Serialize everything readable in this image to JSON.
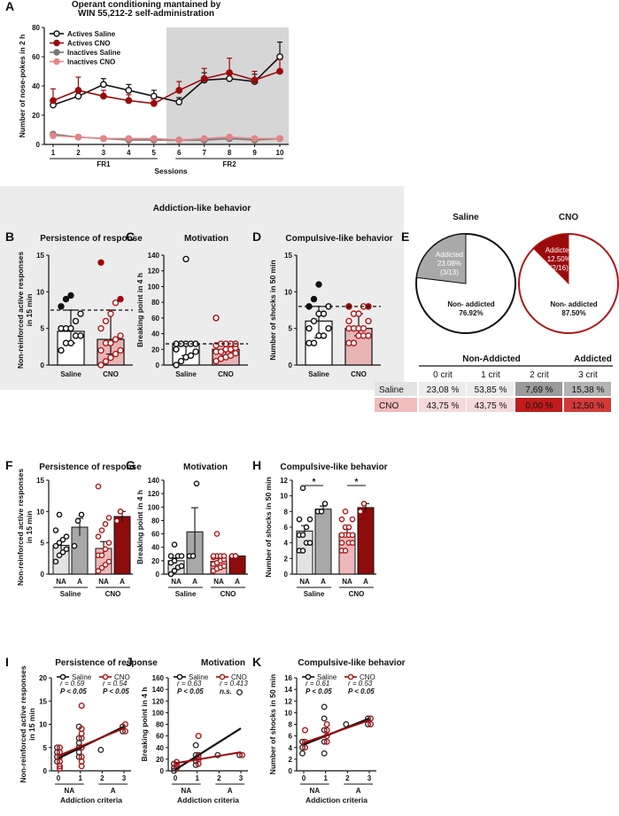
{
  "section_banner": "Addiction-like behavior",
  "chart_data": [
    {
      "panel": "A",
      "type": "line",
      "title": "Operant conditioning mantained by WIN 55,212-2 self-administration",
      "xlabel": "Sessions",
      "ylabel": "Number of nose-pokes in 2 h",
      "ylim": [
        0,
        80
      ],
      "yticks": [
        0,
        20,
        40,
        60,
        80
      ],
      "x": [
        1,
        2,
        3,
        4,
        5,
        6,
        7,
        8,
        9,
        10
      ],
      "phases": [
        {
          "label": "FR1",
          "range": [
            1,
            5
          ]
        },
        {
          "label": "FR2",
          "range": [
            6,
            10
          ]
        }
      ],
      "series": [
        {
          "name": "Actives Saline",
          "values": [
            27,
            33,
            41,
            37,
            33,
            29,
            44,
            45,
            43,
            60
          ],
          "error": [
            3,
            3,
            4,
            4,
            4,
            3,
            5,
            5,
            5,
            10
          ]
        },
        {
          "name": "Actives CNO",
          "values": [
            30,
            37,
            33,
            30,
            28,
            37,
            45,
            49,
            44,
            50
          ],
          "error": [
            8,
            9,
            4,
            4,
            3,
            6,
            7,
            10,
            6,
            8
          ]
        },
        {
          "name": "Inactives Saline",
          "values": [
            7,
            5,
            4,
            3,
            3,
            3,
            3,
            4,
            3,
            4
          ],
          "error": [
            1,
            1,
            1,
            1,
            1,
            1,
            1,
            1,
            1,
            1
          ]
        },
        {
          "name": "Inactives CNO",
          "values": [
            6,
            5,
            4,
            4,
            4,
            3,
            4,
            5,
            4,
            4
          ],
          "error": [
            1,
            1,
            1,
            1,
            1,
            1,
            1,
            1,
            1,
            1
          ]
        }
      ]
    },
    {
      "panel": "B",
      "type": "bar",
      "title": "Persistence of response",
      "ylabel": "Non-reinforced active responses in 15 min",
      "ylim": [
        0,
        15
      ],
      "yticks": [
        0,
        5,
        10,
        15
      ],
      "threshold": 7.5,
      "categories": [
        "Saline",
        "CNO"
      ],
      "values": [
        4.6,
        3.5
      ],
      "error": [
        [
          3.0,
          7.5
        ],
        [
          1.5,
          7.5
        ]
      ],
      "points": [
        [
          2,
          3,
          3,
          4,
          4,
          5,
          5,
          5,
          6,
          7,
          8,
          9,
          9.5
        ],
        [
          0,
          0.5,
          1,
          1.5,
          2,
          2,
          3,
          3,
          3.5,
          4,
          5,
          6,
          7,
          8.5,
          9,
          14
        ]
      ]
    },
    {
      "panel": "C",
      "type": "bar",
      "title": "Motivation",
      "ylabel": "Breaking point in 4 h",
      "ylim": [
        0,
        140
      ],
      "yticks": [
        0,
        20,
        40,
        60,
        80,
        100,
        120,
        140
      ],
      "threshold": 27,
      "categories": [
        "Saline",
        "CNO"
      ],
      "values": [
        27,
        20
      ],
      "error": [
        [
          12,
          27
        ],
        [
          12,
          27
        ]
      ],
      "points": [
        [
          0,
          5,
          10,
          12,
          17,
          20,
          27,
          27,
          27,
          27,
          27,
          27,
          135
        ],
        [
          5,
          8,
          10,
          12,
          15,
          17,
          17,
          20,
          20,
          22,
          25,
          27,
          27,
          27,
          27,
          60
        ]
      ]
    },
    {
      "panel": "D",
      "type": "bar",
      "title": "Compulsive-like behavior",
      "ylabel": "Number of shocks in 50 min",
      "ylim": [
        0,
        15
      ],
      "yticks": [
        0,
        5,
        10,
        15
      ],
      "threshold": 8,
      "categories": [
        "Saline",
        "CNO"
      ],
      "values": [
        6,
        5
      ],
      "error": [
        [
          3.7,
          8
        ],
        [
          4,
          7
        ]
      ],
      "points": [
        [
          3,
          3,
          4,
          4,
          5,
          5,
          6,
          7,
          7,
          8,
          8,
          9,
          11
        ],
        [
          3,
          3,
          4,
          4,
          4,
          5,
          5,
          5,
          5,
          6,
          6,
          7,
          7,
          8,
          8,
          8
        ]
      ]
    },
    {
      "panel": "E",
      "type": "pie",
      "pies": [
        {
          "title": "Saline",
          "slices": [
            {
              "label": "Addicted",
              "value": 23.08,
              "pct": "23.08%",
              "count": "(3/13)"
            },
            {
              "label": "Non- addicted",
              "value": 76.92,
              "pct": "76.92%"
            }
          ]
        },
        {
          "title": "CNO",
          "slices": [
            {
              "label": "Addicted",
              "value": 12.5,
              "pct": "12.50%",
              "count": "(2/16)"
            },
            {
              "label": "Non- addicted",
              "value": 87.5,
              "pct": "87.50%"
            }
          ]
        }
      ]
    },
    {
      "panel": "E-table",
      "type": "table",
      "group_headers": [
        "Non-Addicted",
        "Addicted"
      ],
      "columns": [
        "0 crit",
        "1 crit",
        "2 crit",
        "3 crit"
      ],
      "rows": [
        {
          "label": "Saline",
          "values": [
            "23,08 %",
            "53,85 %",
            "7,69 %",
            "15,38 %"
          ]
        },
        {
          "label": "CNO",
          "values": [
            "43,75 %",
            "43,75 %",
            "0,00 %",
            "12,50 %"
          ]
        }
      ]
    },
    {
      "panel": "F",
      "type": "bar",
      "title": "Persistence of response",
      "ylabel": "Non-reinforced active responses in 15 min",
      "ylim": [
        0,
        15
      ],
      "yticks": [
        0,
        5,
        10,
        15
      ],
      "categories": [
        "NA",
        "A",
        "NA",
        "A"
      ],
      "groups": [
        "Saline",
        "CNO"
      ],
      "values": [
        4.6,
        7.5,
        4.1,
        9.2
      ],
      "error": [
        0.7,
        1.4,
        1.1,
        0.8
      ],
      "points": [
        [
          2,
          3,
          3.5,
          4,
          4.5,
          5,
          5.5,
          6,
          7,
          9.5
        ],
        [
          4.5,
          8.5,
          9.5
        ],
        [
          0.5,
          1,
          1.5,
          2,
          3,
          3,
          4,
          5,
          6,
          7,
          8,
          9,
          14
        ],
        [
          8.5,
          10
        ]
      ]
    },
    {
      "panel": "G",
      "type": "bar",
      "title": "Motivation",
      "ylabel": "Breaking point in 4 h",
      "ylim": [
        0,
        140
      ],
      "yticks": [
        0,
        20,
        40,
        60,
        80,
        100,
        120,
        140
      ],
      "categories": [
        "NA",
        "A",
        "NA",
        "A"
      ],
      "groups": [
        "Saline",
        "CNO"
      ],
      "values": [
        20,
        63,
        19,
        27
      ],
      "error": [
        4,
        36,
        4,
        0
      ],
      "points": [
        [
          0,
          5,
          10,
          12,
          17,
          20,
          27,
          27,
          27,
          44
        ],
        [
          27,
          27,
          135
        ],
        [
          5,
          8,
          10,
          12,
          15,
          17,
          20,
          22,
          25,
          27,
          27,
          27,
          27,
          60
        ],
        [
          27,
          27
        ]
      ]
    },
    {
      "panel": "H",
      "type": "bar",
      "title": "Compulsive-like behavior",
      "ylabel": "Number of shocks in 50 min",
      "ylim": [
        0,
        12
      ],
      "yticks": [
        0,
        2,
        4,
        6,
        8,
        10,
        12
      ],
      "categories": [
        "NA",
        "A",
        "NA",
        "A"
      ],
      "groups": [
        "Saline",
        "CNO"
      ],
      "values": [
        5.5,
        8.3,
        5.2,
        8.5
      ],
      "error": [
        0.7,
        0.4,
        0.5,
        0.5
      ],
      "points": [
        [
          3,
          3,
          4,
          4,
          5,
          5,
          6,
          7,
          7,
          11
        ],
        [
          8,
          8,
          9
        ],
        [
          3,
          3,
          4,
          4,
          4,
          5,
          5,
          5,
          5,
          6,
          6,
          7,
          7,
          8
        ],
        [
          8,
          9
        ]
      ],
      "significance": [
        {
          "between": [
            0,
            1
          ],
          "label": "*"
        },
        {
          "between": [
            2,
            3
          ],
          "label": "*"
        }
      ]
    },
    {
      "panel": "I",
      "type": "scatter",
      "title": "Persistence of response",
      "xlabel": "Addiction criteria",
      "ylabel": "Non-reinforced active responses in 15 min",
      "xlim": [
        0,
        3
      ],
      "ylim": [
        0,
        20
      ],
      "yticks": [
        0,
        5,
        10,
        15,
        20
      ],
      "xticks": [
        0,
        1,
        2,
        3
      ],
      "xgroups": [
        {
          "label": "NA",
          "range": [
            0,
            1
          ]
        },
        {
          "label": "A",
          "range": [
            2,
            3
          ]
        }
      ],
      "series": [
        {
          "name": "Saline",
          "r": "r = 0.59",
          "p": "P < 0.05",
          "points": [
            [
              0,
              2
            ],
            [
              0,
              3
            ],
            [
              0,
              4
            ],
            [
              0,
              5
            ],
            [
              1,
              3
            ],
            [
              1,
              4
            ],
            [
              1,
              5
            ],
            [
              1,
              6
            ],
            [
              1,
              7
            ],
            [
              1,
              9.5
            ],
            [
              2,
              4.5
            ],
            [
              3,
              8.5
            ],
            [
              3,
              9.5
            ]
          ],
          "fit": [
            [
              0,
              2.7
            ],
            [
              3,
              9.5
            ]
          ]
        },
        {
          "name": "CNO",
          "r": "r = 0.54",
          "p": "P < 0.05",
          "points": [
            [
              0,
              0.5
            ],
            [
              0,
              1
            ],
            [
              0,
              2
            ],
            [
              0,
              3
            ],
            [
              0,
              4
            ],
            [
              0,
              5
            ],
            [
              1,
              1
            ],
            [
              1,
              2
            ],
            [
              1,
              3
            ],
            [
              1,
              5
            ],
            [
              1,
              7
            ],
            [
              1,
              8
            ],
            [
              1,
              9
            ],
            [
              1,
              14
            ],
            [
              3,
              8.5
            ],
            [
              3,
              10
            ]
          ],
          "fit": [
            [
              0,
              3.2
            ],
            [
              3,
              9.2
            ]
          ]
        }
      ]
    },
    {
      "panel": "J",
      "type": "scatter",
      "title": "Motivation",
      "xlabel": "Addiction criteria",
      "ylabel": "Breaking point in 4 h",
      "xlim": [
        0,
        3
      ],
      "ylim": [
        0,
        160
      ],
      "yticks": [
        0,
        20,
        40,
        60,
        80,
        100,
        120,
        140,
        160
      ],
      "xticks": [
        0,
        1,
        2,
        3
      ],
      "xgroups": [
        {
          "label": "NA",
          "range": [
            0,
            1
          ]
        },
        {
          "label": "A",
          "range": [
            2,
            3
          ]
        }
      ],
      "series": [
        {
          "name": "Saline",
          "r": "r = 0.63",
          "p": "P < 0.05",
          "points": [
            [
              0,
              0
            ],
            [
              0,
              5
            ],
            [
              0,
              12
            ],
            [
              1,
              10
            ],
            [
              1,
              17
            ],
            [
              1,
              27
            ],
            [
              1,
              44
            ],
            [
              2,
              27
            ],
            [
              3,
              27
            ],
            [
              3,
              135
            ]
          ],
          "fit": [
            [
              0,
              2
            ],
            [
              3,
              73
            ]
          ]
        },
        {
          "name": "CNO",
          "r": "r = 0.413",
          "p": "n.s.",
          "points": [
            [
              0,
              5
            ],
            [
              0,
              10
            ],
            [
              0,
              15
            ],
            [
              1,
              12
            ],
            [
              1,
              20
            ],
            [
              1,
              27
            ],
            [
              1,
              60
            ],
            [
              3,
              27
            ]
          ],
          "fit": [
            [
              0,
              13
            ],
            [
              3,
              32
            ]
          ]
        }
      ]
    },
    {
      "panel": "K",
      "type": "scatter",
      "title": "Compulsive-like behavior",
      "xlabel": "Addiction criteria",
      "ylabel": "Number of shocks in 50 min",
      "xlim": [
        0,
        3
      ],
      "ylim": [
        0,
        16
      ],
      "yticks": [
        0,
        2,
        4,
        6,
        8,
        10,
        12,
        14,
        16
      ],
      "xticks": [
        0,
        1,
        2,
        3
      ],
      "xgroups": [
        {
          "label": "NA",
          "range": [
            0,
            1
          ]
        },
        {
          "label": "A",
          "range": [
            2,
            3
          ]
        }
      ],
      "series": [
        {
          "name": "Saline",
          "r": "r = 0.61",
          "p": "P < 0.05",
          "points": [
            [
              0,
              3
            ],
            [
              0,
              4
            ],
            [
              0,
              5
            ],
            [
              1,
              3
            ],
            [
              1,
              5
            ],
            [
              1,
              7
            ],
            [
              1,
              9
            ],
            [
              1,
              11
            ],
            [
              2,
              8
            ],
            [
              3,
              8
            ],
            [
              3,
              9
            ]
          ],
          "fit": [
            [
              0,
              4.5
            ],
            [
              3,
              9
            ]
          ]
        },
        {
          "name": "CNO",
          "r": "r = 0.53",
          "p": "P < 0.05",
          "points": [
            [
              0,
              4
            ],
            [
              0,
              5
            ],
            [
              0,
              7
            ],
            [
              1,
              5
            ],
            [
              1,
              6
            ],
            [
              1,
              7
            ],
            [
              1,
              8
            ],
            [
              3,
              8
            ],
            [
              3,
              9
            ]
          ],
          "fit": [
            [
              0,
              4.8
            ],
            [
              3,
              8.7
            ]
          ]
        }
      ]
    }
  ]
}
